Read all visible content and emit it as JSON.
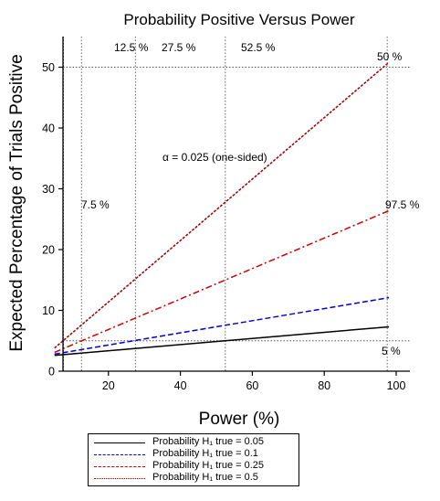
{
  "chart_data": {
    "type": "line",
    "title": "Probability Positive Versus Power",
    "xlabel": "Power (%)",
    "ylabel": "Expected Percentage of Trials Positive",
    "xlim": [
      0,
      102
    ],
    "ylim": [
      0,
      55
    ],
    "xticks": [
      20,
      40,
      60,
      80,
      100
    ],
    "yticks": [
      0,
      10,
      20,
      30,
      40,
      50
    ],
    "alpha_annotation": "α = 0.025 (one-sided)",
    "reference_lines": {
      "vertical": [
        {
          "x": 7.5,
          "label": "7.5 %"
        },
        {
          "x": 12.5,
          "label": "12.5 %"
        },
        {
          "x": 27.5,
          "label": "27.5 %"
        },
        {
          "x": 52.5,
          "label": "52.5 %"
        },
        {
          "x": 97.5,
          "label": "97.5 %"
        }
      ],
      "horizontal": [
        {
          "y": 5,
          "label": "5 %"
        },
        {
          "y": 50,
          "label": "50 %"
        }
      ]
    },
    "series": [
      {
        "name": "Probability H₁ true = 0.05",
        "color": "#000000",
        "dash": "solid",
        "x": [
          5,
          98
        ],
        "y": [
          2.6,
          7.3
        ]
      },
      {
        "name": "Probability H₁ true = 0.1",
        "color": "#0000cc",
        "dash": "dashed",
        "x": [
          5,
          98
        ],
        "y": [
          2.8,
          12.1
        ]
      },
      {
        "name": "Probability H₁ true = 0.25",
        "color": "#cc0000",
        "dash": "dashdot",
        "x": [
          5,
          98
        ],
        "y": [
          3.1,
          26.4
        ]
      },
      {
        "name": "Probability H₁ true = 0.5",
        "color": "#990000",
        "dash": "dotted-dense",
        "x": [
          5,
          98
        ],
        "y": [
          3.8,
          50.8
        ]
      }
    ]
  }
}
